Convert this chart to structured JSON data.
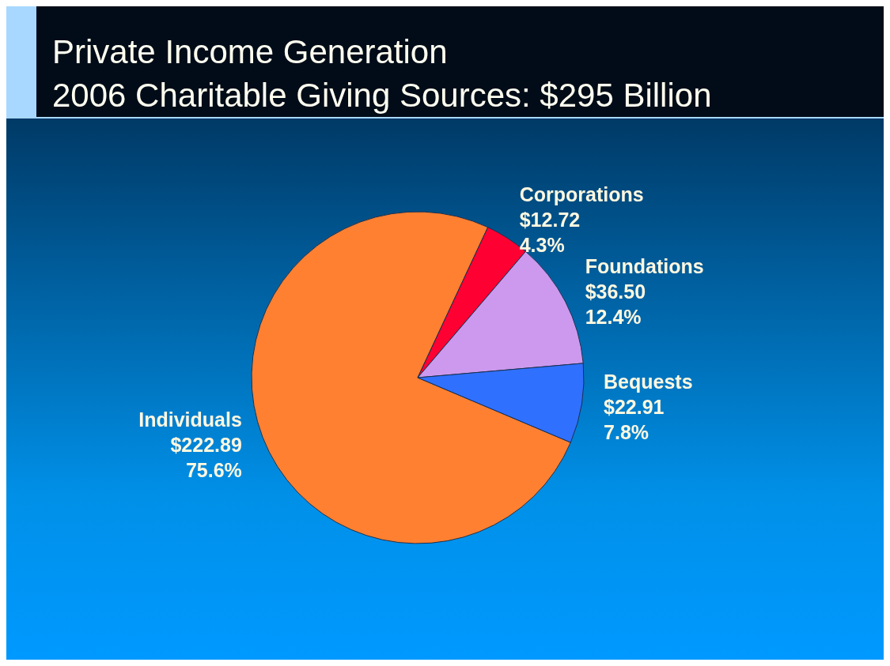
{
  "chart_data": {
    "type": "pie",
    "title": "Private Income Generation",
    "subtitle": "2006 Charitable Giving Sources: $295 Billion",
    "categories": [
      "Individuals",
      "Corporations",
      "Foundations",
      "Bequests"
    ],
    "values": [
      222.89,
      12.72,
      36.5,
      22.91
    ],
    "colors": [
      "#ff8030",
      "#ff0033",
      "#cc99ee",
      "#3070ff"
    ],
    "value_labels": [
      "$222.89\n75.6%",
      "$12.72\n4.3%",
      "$36.50\n12.4%",
      "$22.91\n7.8%"
    ]
  }
}
